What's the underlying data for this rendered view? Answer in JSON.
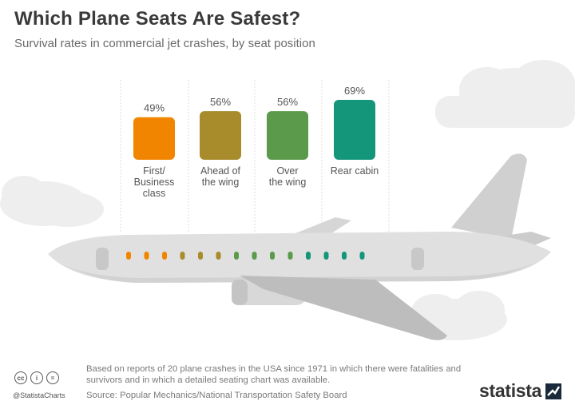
{
  "header": {
    "title": "Which Plane Seats Are Safest?",
    "subtitle": "Survival rates in commercial jet crashes, by seat position"
  },
  "chart_data": {
    "type": "bar",
    "categories": [
      "First/ Business class",
      "Ahead of the wing",
      "Over the wing",
      "Rear cabin"
    ],
    "category_lines": [
      [
        "First/",
        "Business",
        "class"
      ],
      [
        "Ahead of",
        "the wing"
      ],
      [
        "Over",
        "the wing"
      ],
      [
        "Rear cabin"
      ]
    ],
    "values": [
      49,
      56,
      56,
      69
    ],
    "value_labels": [
      "49%",
      "56%",
      "56%",
      "69%"
    ],
    "unit": "%",
    "ylim": [
      0,
      100
    ],
    "colors": [
      "#f28500",
      "#a88b2a",
      "#5a9a4a",
      "#14967a"
    ]
  },
  "footer": {
    "note": "Based on reports of 20 plane crashes in the USA since 1971 in which there were fatalities and survivors and in which a detailed seating chart was available.",
    "source": "Source: Popular Mechanics/National Transportation Safety Board",
    "handle": "@StatistaCharts",
    "brand": "statista",
    "cc_icons": [
      "cc",
      "i",
      "="
    ]
  }
}
